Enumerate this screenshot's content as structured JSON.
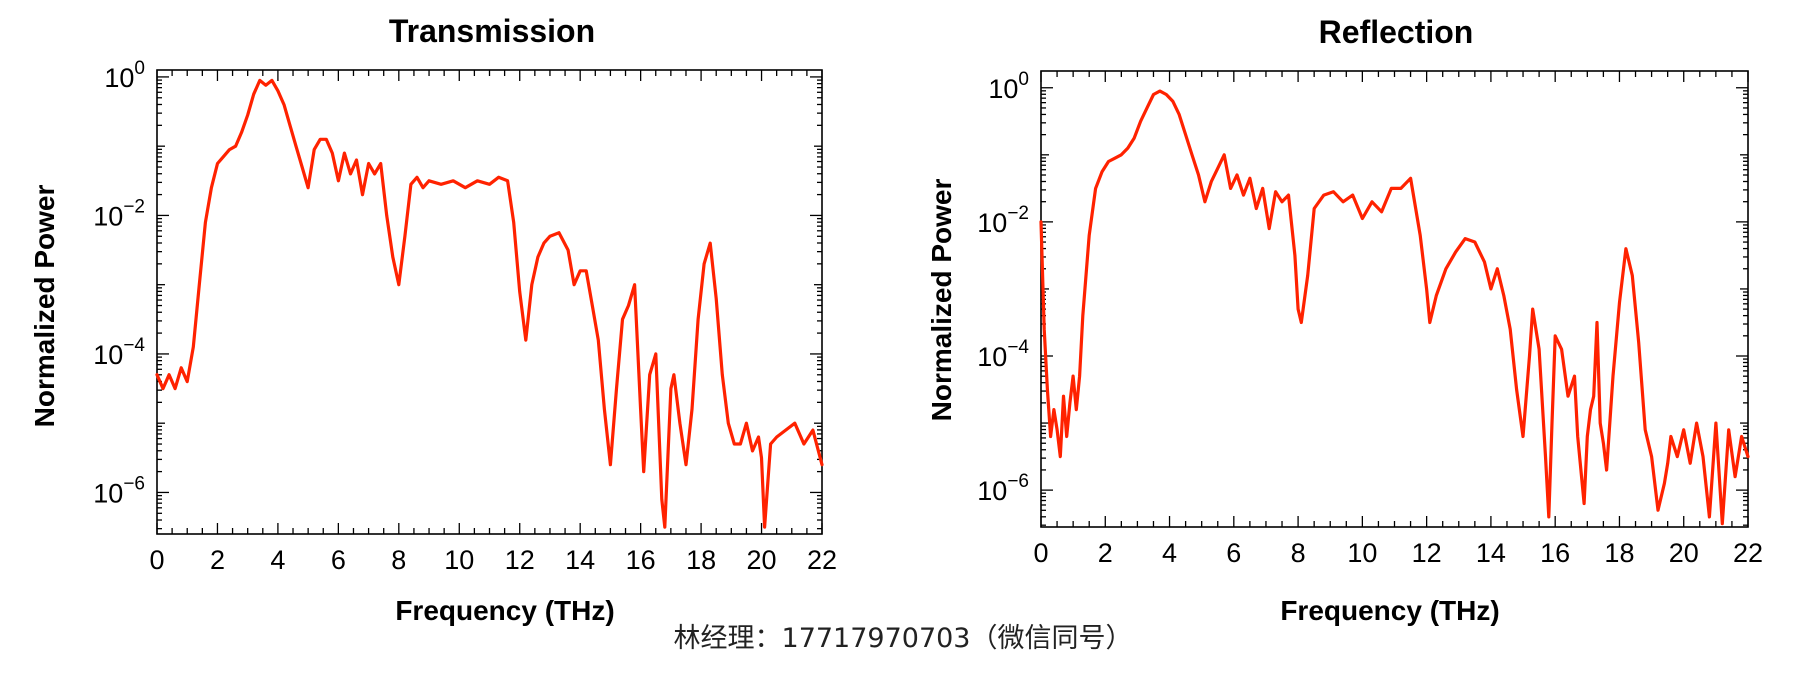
{
  "charts": [
    {
      "title": "Transmission",
      "xlabel": "Frequency (THz)",
      "ylabel": "Normalized Power"
    },
    {
      "title": "Reflection",
      "xlabel": "Frequency (THz)",
      "ylabel": "Normalized Power"
    }
  ],
  "watermark": "林经理：17717970703（微信同号）",
  "colors": {
    "series": "#ff2200",
    "axes": "#000000"
  },
  "chart_data": [
    {
      "type": "line",
      "title": "Transmission",
      "xlabel": "Frequency (THz)",
      "ylabel": "Normalized Power",
      "xlim": [
        0,
        22
      ],
      "ylim_log10": [
        -6.6,
        0.1
      ],
      "yscale": "log",
      "xticks": [
        0,
        2,
        4,
        6,
        8,
        10,
        12,
        14,
        16,
        18,
        20,
        22
      ],
      "yticks": [
        {
          "base": "10",
          "exp": "0"
        },
        {
          "base": "10",
          "exp": "−2"
        },
        {
          "base": "10",
          "exp": "−4"
        },
        {
          "base": "10",
          "exp": "−6"
        }
      ],
      "grid": false,
      "series": [
        {
          "x": [
            0,
            0.2,
            0.4,
            0.6,
            0.8,
            1.0,
            1.2,
            1.4,
            1.6,
            1.8,
            2.0,
            2.2,
            2.4,
            2.6,
            2.8,
            3.0,
            3.2,
            3.4,
            3.6,
            3.8,
            4.0,
            4.2,
            4.4,
            4.6,
            4.8,
            5.0,
            5.2,
            5.4,
            5.6,
            5.8,
            6.0,
            6.2,
            6.4,
            6.6,
            6.8,
            7.0,
            7.2,
            7.4,
            7.6,
            7.8,
            8.0,
            8.2,
            8.4,
            8.6,
            8.8,
            9.0,
            9.4,
            9.8,
            10.2,
            10.6,
            11.0,
            11.3,
            11.6,
            11.8,
            12.0,
            12.2,
            12.4,
            12.6,
            12.8,
            13.0,
            13.3,
            13.6,
            13.8,
            14.0,
            14.2,
            14.4,
            14.6,
            14.8,
            15.0,
            15.2,
            15.4,
            15.6,
            15.8,
            16.0,
            16.1,
            16.3,
            16.5,
            16.7,
            16.8,
            17.0,
            17.1,
            17.3,
            17.5,
            17.7,
            17.9,
            18.1,
            18.3,
            18.5,
            18.7,
            18.9,
            19.1,
            19.3,
            19.5,
            19.7,
            19.9,
            20.0,
            20.1,
            20.3,
            20.5,
            20.8,
            21.1,
            21.4,
            21.7,
            22.0
          ],
          "y_log10": [
            -4.3,
            -4.5,
            -4.3,
            -4.5,
            -4.2,
            -4.4,
            -3.9,
            -3.0,
            -2.1,
            -1.6,
            -1.25,
            -1.15,
            -1.05,
            -1.0,
            -0.8,
            -0.55,
            -0.25,
            -0.05,
            -0.12,
            -0.05,
            -0.2,
            -0.4,
            -0.7,
            -1.0,
            -1.3,
            -1.6,
            -1.05,
            -0.9,
            -0.9,
            -1.1,
            -1.5,
            -1.1,
            -1.4,
            -1.2,
            -1.7,
            -1.25,
            -1.4,
            -1.25,
            -2.0,
            -2.6,
            -3.0,
            -2.3,
            -1.55,
            -1.45,
            -1.6,
            -1.5,
            -1.55,
            -1.5,
            -1.6,
            -1.5,
            -1.55,
            -1.45,
            -1.5,
            -2.1,
            -3.1,
            -3.8,
            -3.0,
            -2.6,
            -2.4,
            -2.3,
            -2.25,
            -2.5,
            -3.0,
            -2.8,
            -2.8,
            -3.3,
            -3.8,
            -4.8,
            -5.6,
            -4.5,
            -3.5,
            -3.3,
            -3.0,
            -4.8,
            -5.7,
            -4.3,
            -4.0,
            -6.1,
            -6.5,
            -4.5,
            -4.3,
            -5.0,
            -5.6,
            -4.8,
            -3.5,
            -2.7,
            -2.4,
            -3.2,
            -4.3,
            -5.0,
            -5.3,
            -5.3,
            -5.0,
            -5.4,
            -5.2,
            -5.5,
            -6.5,
            -5.3,
            -5.2,
            -5.1,
            -5.0,
            -5.3,
            -5.1,
            -5.6
          ]
        }
      ]
    },
    {
      "type": "line",
      "title": "Reflection",
      "xlabel": "Frequency (THz)",
      "ylabel": "Normalized Power",
      "xlim": [
        0,
        22
      ],
      "ylim_log10": [
        -6.55,
        0.25
      ],
      "yscale": "log",
      "xticks": [
        0,
        2,
        4,
        6,
        8,
        10,
        12,
        14,
        16,
        18,
        20,
        22
      ],
      "yticks": [
        {
          "base": "10",
          "exp": "0"
        },
        {
          "base": "10",
          "exp": "−2"
        },
        {
          "base": "10",
          "exp": "−4"
        },
        {
          "base": "10",
          "exp": "−6"
        }
      ],
      "grid": false,
      "series": [
        {
          "x": [
            0,
            0.1,
            0.2,
            0.3,
            0.4,
            0.5,
            0.6,
            0.7,
            0.8,
            0.9,
            1.0,
            1.1,
            1.2,
            1.3,
            1.5,
            1.7,
            1.9,
            2.1,
            2.3,
            2.5,
            2.7,
            2.9,
            3.1,
            3.3,
            3.5,
            3.7,
            3.9,
            4.1,
            4.3,
            4.5,
            4.7,
            4.9,
            5.1,
            5.3,
            5.5,
            5.7,
            5.9,
            6.1,
            6.3,
            6.5,
            6.7,
            6.9,
            7.1,
            7.3,
            7.5,
            7.7,
            7.9,
            8.0,
            8.1,
            8.3,
            8.5,
            8.8,
            9.1,
            9.4,
            9.7,
            10.0,
            10.3,
            10.6,
            10.9,
            11.2,
            11.5,
            11.8,
            12.0,
            12.1,
            12.3,
            12.6,
            12.9,
            13.2,
            13.5,
            13.8,
            14.0,
            14.2,
            14.4,
            14.6,
            14.8,
            15.0,
            15.2,
            15.3,
            15.5,
            15.7,
            15.8,
            15.9,
            16.0,
            16.2,
            16.4,
            16.6,
            16.7,
            16.9,
            17.0,
            17.1,
            17.2,
            17.3,
            17.4,
            17.5,
            17.6,
            17.8,
            18.0,
            18.2,
            18.4,
            18.6,
            18.8,
            19.0,
            19.2,
            19.4,
            19.5,
            19.6,
            19.8,
            20.0,
            20.2,
            20.4,
            20.6,
            20.8,
            21.0,
            21.2,
            21.4,
            21.6,
            21.8,
            22.0
          ],
          "y_log10": [
            -2.0,
            -3.6,
            -4.5,
            -5.2,
            -4.8,
            -5.1,
            -5.5,
            -4.6,
            -5.2,
            -4.7,
            -4.3,
            -4.8,
            -4.3,
            -3.4,
            -2.2,
            -1.5,
            -1.25,
            -1.1,
            -1.05,
            -1.0,
            -0.9,
            -0.75,
            -0.5,
            -0.3,
            -0.1,
            -0.05,
            -0.1,
            -0.2,
            -0.4,
            -0.7,
            -1.0,
            -1.3,
            -1.7,
            -1.4,
            -1.2,
            -1.0,
            -1.5,
            -1.3,
            -1.6,
            -1.35,
            -1.8,
            -1.5,
            -2.1,
            -1.55,
            -1.7,
            -1.6,
            -2.5,
            -3.3,
            -3.5,
            -2.8,
            -1.8,
            -1.6,
            -1.55,
            -1.7,
            -1.6,
            -1.95,
            -1.7,
            -1.85,
            -1.5,
            -1.5,
            -1.35,
            -2.2,
            -3.0,
            -3.5,
            -3.1,
            -2.7,
            -2.45,
            -2.25,
            -2.3,
            -2.6,
            -3.0,
            -2.7,
            -3.1,
            -3.6,
            -4.5,
            -5.2,
            -4.0,
            -3.3,
            -3.9,
            -5.5,
            -6.4,
            -5.0,
            -3.7,
            -3.9,
            -4.6,
            -4.3,
            -5.2,
            -6.2,
            -5.2,
            -4.8,
            -4.6,
            -3.5,
            -5.0,
            -5.3,
            -5.7,
            -4.3,
            -3.2,
            -2.4,
            -2.8,
            -3.8,
            -5.1,
            -5.5,
            -6.3,
            -5.9,
            -5.6,
            -5.2,
            -5.5,
            -5.1,
            -5.6,
            -5.0,
            -5.5,
            -6.4,
            -5.0,
            -6.5,
            -5.1,
            -5.8,
            -5.2,
            -5.5
          ]
        }
      ]
    }
  ]
}
